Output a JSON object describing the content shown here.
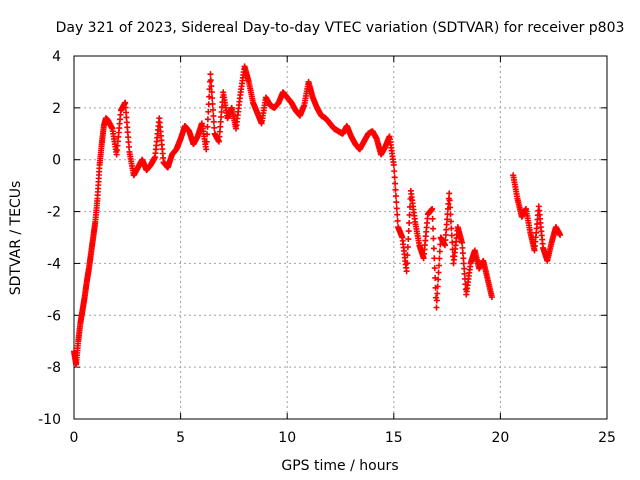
{
  "chart_data": {
    "type": "scatter",
    "title": "Day 321 of 2023, Sidereal Day-to-day VTEC variation (SDTVAR) for receiver p803",
    "xlabel": "GPS time / hours",
    "ylabel": "SDTVAR / TECUs",
    "xlim": [
      0,
      25
    ],
    "ylim": [
      -10,
      4
    ],
    "xticks": [
      0,
      5,
      10,
      15,
      20,
      25
    ],
    "yticks": [
      -10,
      -8,
      -6,
      -4,
      -2,
      0,
      2,
      4
    ],
    "grid": true,
    "marker": "+",
    "marker_color": "#ff0000",
    "series": [
      {
        "name": "SDTVAR",
        "x": [
          0.0,
          0.1,
          0.2,
          0.3,
          0.4,
          0.5,
          0.6,
          0.7,
          0.8,
          0.9,
          1.0,
          1.1,
          1.2,
          1.3,
          1.4,
          1.5,
          1.6,
          1.8,
          2.0,
          2.2,
          2.4,
          2.6,
          2.8,
          3.0,
          3.2,
          3.4,
          3.6,
          3.8,
          4.0,
          4.2,
          4.4,
          4.6,
          4.8,
          5.0,
          5.2,
          5.4,
          5.6,
          5.8,
          6.0,
          6.2,
          6.4,
          6.6,
          6.8,
          7.0,
          7.2,
          7.4,
          7.6,
          7.8,
          8.0,
          8.2,
          8.4,
          8.6,
          8.8,
          9.0,
          9.2,
          9.4,
          9.6,
          9.8,
          10.0,
          10.2,
          10.4,
          10.6,
          10.8,
          11.0,
          11.2,
          11.4,
          11.6,
          11.8,
          12.0,
          12.2,
          12.4,
          12.6,
          12.8,
          13.0,
          13.2,
          13.4,
          13.6,
          13.8,
          14.0,
          14.2,
          14.4,
          14.6,
          14.8,
          15.0,
          15.2,
          15.4,
          15.6,
          15.8,
          16.0,
          16.2,
          16.4,
          16.6,
          16.8,
          17.0,
          17.2,
          17.4,
          17.6,
          17.8,
          18.0,
          18.2,
          18.4,
          18.6,
          18.8,
          19.0,
          19.2,
          19.4,
          19.6,
          20.6,
          20.8,
          21.0,
          21.2,
          21.4,
          21.6,
          21.8,
          22.0,
          22.2,
          22.4,
          22.6,
          22.8
        ],
        "y": [
          -7.4,
          -7.9,
          -7.0,
          -6.3,
          -5.8,
          -5.3,
          -4.7,
          -4.2,
          -3.6,
          -3.0,
          -2.4,
          -1.5,
          -0.2,
          0.6,
          1.3,
          1.6,
          1.5,
          1.2,
          0.2,
          1.9,
          2.2,
          0.3,
          -0.6,
          -0.3,
          0.0,
          -0.4,
          -0.2,
          0.1,
          1.6,
          -0.1,
          -0.3,
          0.2,
          0.4,
          0.8,
          1.3,
          1.1,
          0.6,
          0.9,
          1.4,
          0.4,
          3.3,
          1.0,
          0.7,
          2.6,
          1.6,
          2.0,
          1.2,
          2.5,
          3.6,
          3.0,
          2.2,
          1.8,
          1.4,
          2.4,
          2.1,
          2.0,
          2.2,
          2.6,
          2.4,
          2.2,
          1.9,
          1.7,
          2.1,
          3.0,
          2.4,
          2.0,
          1.7,
          1.6,
          1.4,
          1.2,
          1.1,
          1.0,
          1.3,
          0.9,
          0.6,
          0.4,
          0.7,
          1.0,
          1.1,
          0.8,
          0.2,
          0.5,
          0.9,
          -0.2,
          -2.6,
          -3.0,
          -4.3,
          -1.2,
          -2.4,
          -3.3,
          -3.8,
          -2.1,
          -1.9,
          -5.7,
          -3.0,
          -3.3,
          -1.3,
          -4.0,
          -2.6,
          -3.2,
          -5.2,
          -4.0,
          -3.5,
          -4.2,
          -3.9,
          -4.6,
          -5.3,
          -0.6,
          -1.5,
          -2.2,
          -1.9,
          -2.8,
          -3.5,
          -1.8,
          -3.4,
          -3.9,
          -3.2,
          -2.6,
          -2.9
        ]
      }
    ]
  }
}
